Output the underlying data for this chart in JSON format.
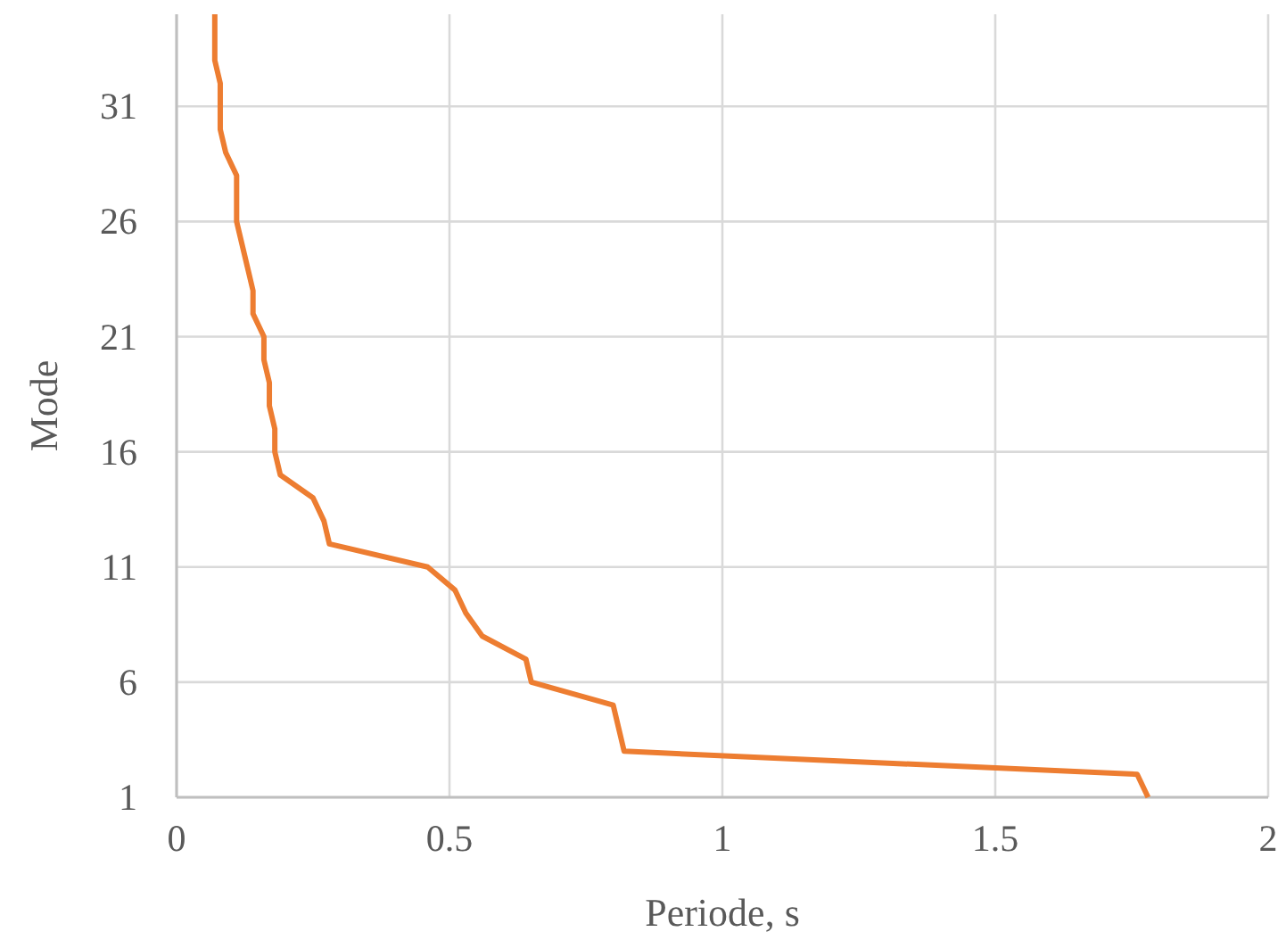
{
  "chart_data": {
    "type": "line",
    "xlabel": "Periode, s",
    "ylabel": "Mode",
    "xlim": [
      0,
      2
    ],
    "xticks": [
      0,
      0.5,
      1,
      1.5,
      2
    ],
    "ylim": [
      1,
      35
    ],
    "yticks": [
      1,
      6,
      11,
      16,
      21,
      26,
      31
    ],
    "grid": true,
    "marker": "none",
    "line_style": "solid",
    "series": [
      {
        "color": "#ed7d31",
        "x": [
          1.78,
          1.76,
          0.82,
          0.81,
          0.8,
          0.65,
          0.64,
          0.56,
          0.53,
          0.51,
          0.46,
          0.28,
          0.27,
          0.25,
          0.19,
          0.18,
          0.18,
          0.17,
          0.17,
          0.16,
          0.16,
          0.14,
          0.14,
          0.13,
          0.12,
          0.11,
          0.11,
          0.11,
          0.09,
          0.08,
          0.08,
          0.08,
          0.07,
          0.07,
          0.07
        ],
        "values": [
          1,
          2,
          3,
          4,
          5,
          6,
          7,
          8,
          9,
          10,
          11,
          12,
          13,
          14,
          15,
          16,
          17,
          18,
          19,
          20,
          21,
          22,
          23,
          24,
          25,
          26,
          27,
          28,
          29,
          30,
          31,
          32,
          33,
          34,
          35
        ]
      }
    ]
  }
}
